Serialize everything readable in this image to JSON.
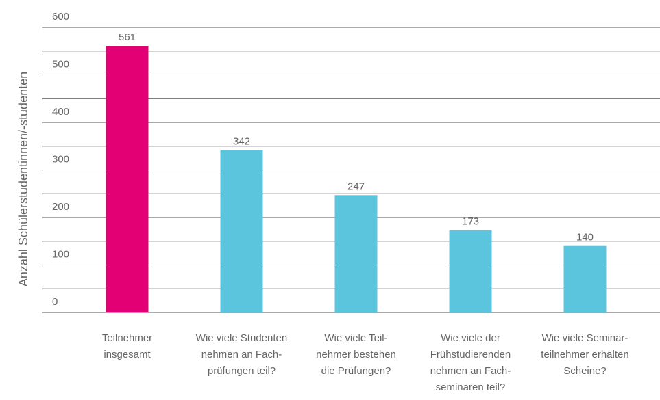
{
  "chart_data": {
    "type": "bar",
    "ylabel": "Anzahl Schülerstudentinnen/-studenten",
    "categories": [
      [
        "Teilnehmer",
        "insgesamt"
      ],
      [
        "Wie viele Studenten",
        "nehmen an Fach-",
        "prüfungen teil?"
      ],
      [
        "Wie viele Teil-",
        "nehmer bestehen",
        "die Prüfungen?"
      ],
      [
        "Wie viele der",
        "Frühstudierenden",
        "nehmen an Fach-",
        "seminaren teil?"
      ],
      [
        "Wie viele Seminar-",
        "teilnehmer erhalten",
        "Scheine?"
      ]
    ],
    "values": [
      561,
      342,
      247,
      173,
      140
    ],
    "colors": [
      "#e20074",
      "#5bc5de",
      "#5bc5de",
      "#5bc5de",
      "#5bc5de"
    ],
    "ylim": [
      0,
      600
    ],
    "yticks": [
      0,
      100,
      200,
      300,
      400,
      500,
      600
    ],
    "minor_yticks": [
      50,
      150,
      250,
      350,
      450,
      550
    ],
    "grid": true
  }
}
